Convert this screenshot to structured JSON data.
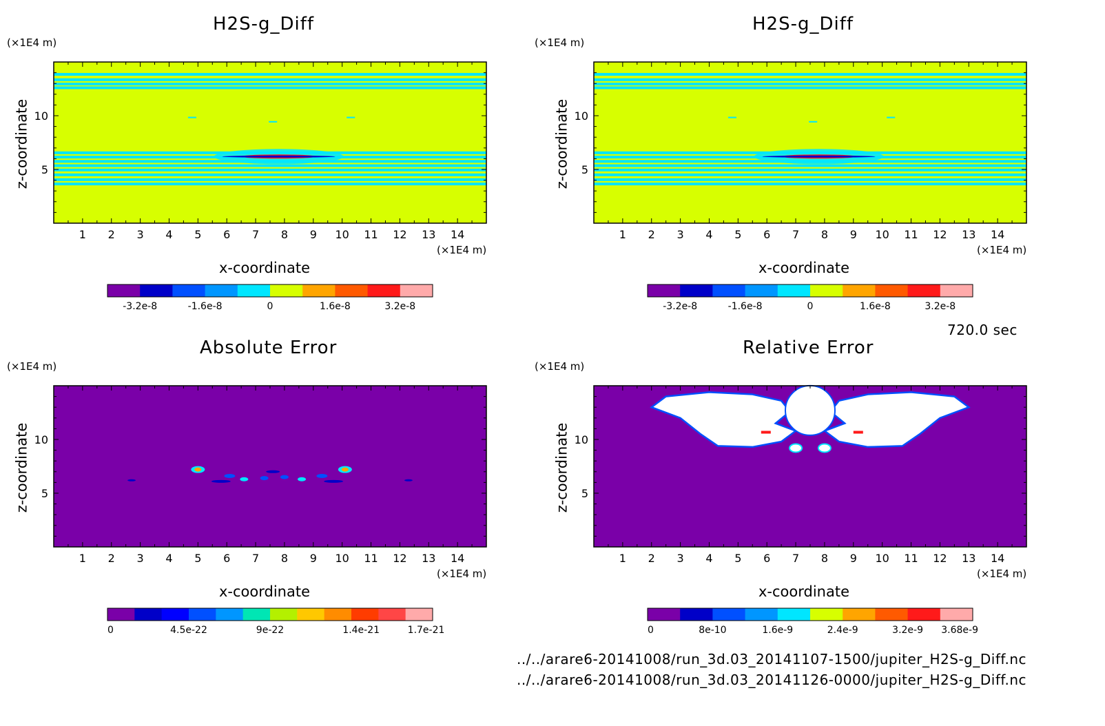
{
  "time_label": "720.0 sec",
  "files": [
    "../../arare6-20141008/run_3d.03_20141107-1500/jupiter_H2S-g_Diff.nc",
    "../../arare6-20141008/run_3d.03_20141126-0000/jupiter_H2S-g_Diff.nc"
  ],
  "colors": {
    "purple": "#7a00a8",
    "navy": "#0000c8",
    "blue": "#0050ff",
    "azure": "#0096ff",
    "cyan": "#00e6ff",
    "yellowgreen": "#d7ff00",
    "orange": "#ffa500",
    "redorange": "#ff5a00",
    "red": "#ff1a1a",
    "pink": "#ffaaaa",
    "white": "#ffffff"
  },
  "chart_data": [
    {
      "type": "heatmap",
      "title": "H2S-g_Diff",
      "xlabel": "x-coordinate",
      "ylabel": "z-coordinate",
      "x_unit": "(×1E4 m)",
      "y_unit": "(×1E4 m)",
      "xlim": [
        0,
        15
      ],
      "ylim": [
        0,
        15
      ],
      "x_ticks": [
        "1",
        "2",
        "3",
        "4",
        "5",
        "6",
        "7",
        "8",
        "9",
        "10",
        "11",
        "12",
        "13",
        "14"
      ],
      "y_ticks": [
        "5",
        "10"
      ],
      "background_value": 0,
      "features": [
        {
          "kind": "horizontal-bands",
          "z_range": [
            12.8,
            14.0
          ],
          "description_value": "small negative",
          "count": 4
        },
        {
          "kind": "horizontal-bands",
          "z_range": [
            3.5,
            6.8
          ],
          "description_value": "small negative",
          "count": 7
        },
        {
          "kind": "lens",
          "x_range": [
            5.5,
            10.0
          ],
          "z": 6.2,
          "description_value": "extremes"
        }
      ],
      "colorbar": {
        "colors": [
          "#7a00a8",
          "#0000c8",
          "#0050ff",
          "#0096ff",
          "#00e6ff",
          "#d7ff00",
          "#ffa500",
          "#ff5a00",
          "#ff1a1a",
          "#ffaaaa"
        ],
        "tick_labels": [
          "-3.2e-8",
          "-1.6e-8",
          "0",
          "1.6e-8",
          "3.2e-8"
        ],
        "range": [
          -4e-08,
          4e-08
        ]
      }
    },
    {
      "type": "heatmap",
      "title": "H2S-g_Diff",
      "xlabel": "x-coordinate",
      "ylabel": "z-coordinate",
      "x_unit": "(×1E4 m)",
      "y_unit": "(×1E4 m)",
      "xlim": [
        0,
        15
      ],
      "ylim": [
        0,
        15
      ],
      "x_ticks": [
        "1",
        "2",
        "3",
        "4",
        "5",
        "6",
        "7",
        "8",
        "9",
        "10",
        "11",
        "12",
        "13",
        "14"
      ],
      "y_ticks": [
        "5",
        "10"
      ],
      "background_value": 0,
      "features": [
        {
          "kind": "horizontal-bands",
          "z_range": [
            12.8,
            14.0
          ],
          "description_value": "small negative",
          "count": 4
        },
        {
          "kind": "horizontal-bands",
          "z_range": [
            3.5,
            6.8
          ],
          "description_value": "small negative",
          "count": 7
        },
        {
          "kind": "lens",
          "x_range": [
            5.5,
            10.0
          ],
          "z": 6.2,
          "description_value": "extremes"
        }
      ],
      "colorbar": {
        "colors": [
          "#7a00a8",
          "#0000c8",
          "#0050ff",
          "#0096ff",
          "#00e6ff",
          "#d7ff00",
          "#ffa500",
          "#ff5a00",
          "#ff1a1a",
          "#ffaaaa"
        ],
        "tick_labels": [
          "-3.2e-8",
          "-1.6e-8",
          "0",
          "1.6e-8",
          "3.2e-8"
        ],
        "range": [
          -4e-08,
          4e-08
        ]
      }
    },
    {
      "type": "heatmap",
      "title": "Absolute Error",
      "xlabel": "x-coordinate",
      "ylabel": "z-coordinate",
      "x_unit": "(×1E4 m)",
      "y_unit": "(×1E4 m)",
      "xlim": [
        0,
        15
      ],
      "ylim": [
        0,
        15
      ],
      "x_ticks": [
        "1",
        "2",
        "3",
        "4",
        "5",
        "6",
        "7",
        "8",
        "9",
        "10",
        "11",
        "12",
        "13",
        "14"
      ],
      "y_ticks": [
        "5",
        "10"
      ],
      "background_value": 0,
      "features": [
        {
          "kind": "blobs",
          "x_range": [
            4.9,
            10.5
          ],
          "z_range": [
            5.8,
            7.5
          ],
          "description_value": "up to 1.7e-21"
        }
      ],
      "colorbar": {
        "colors": [
          "#7a00a8",
          "#0000c8",
          "#0000ff",
          "#0050ff",
          "#0096ff",
          "#00e6b4",
          "#b4f000",
          "#ffc800",
          "#ff8c00",
          "#ff3c00",
          "#ff4646",
          "#ffaaaa"
        ],
        "tick_labels": [
          "0",
          "4.5e-22",
          "9e-22",
          "1.4e-21",
          "1.7e-21"
        ],
        "range": [
          0,
          1.8e-21
        ]
      }
    },
    {
      "type": "heatmap",
      "title": "Relative Error",
      "xlabel": "x-coordinate",
      "ylabel": "z-coordinate",
      "x_unit": "(×1E4 m)",
      "y_unit": "(×1E4 m)",
      "xlim": [
        0,
        15
      ],
      "ylim": [
        0,
        15
      ],
      "x_ticks": [
        "1",
        "2",
        "3",
        "4",
        "5",
        "6",
        "7",
        "8",
        "9",
        "10",
        "11",
        "12",
        "13",
        "14"
      ],
      "y_ticks": [
        "5",
        "10"
      ],
      "background_value": 0,
      "features": [
        {
          "kind": "undefined-region",
          "x_range": [
            2.0,
            13.0
          ],
          "z_range": [
            9.0,
            14.0
          ],
          "description_value": "blank (no data)"
        }
      ],
      "colorbar": {
        "colors": [
          "#7a00a8",
          "#0000c8",
          "#0050ff",
          "#0096ff",
          "#00e6ff",
          "#d7ff00",
          "#ffa500",
          "#ff5a00",
          "#ff1a1a",
          "#ffaaaa"
        ],
        "tick_labels": [
          "0",
          "8e-10",
          "1.6e-9",
          "2.4e-9",
          "3.2e-9",
          "3.68e-9"
        ],
        "range": [
          0,
          3.68e-09
        ]
      }
    }
  ]
}
